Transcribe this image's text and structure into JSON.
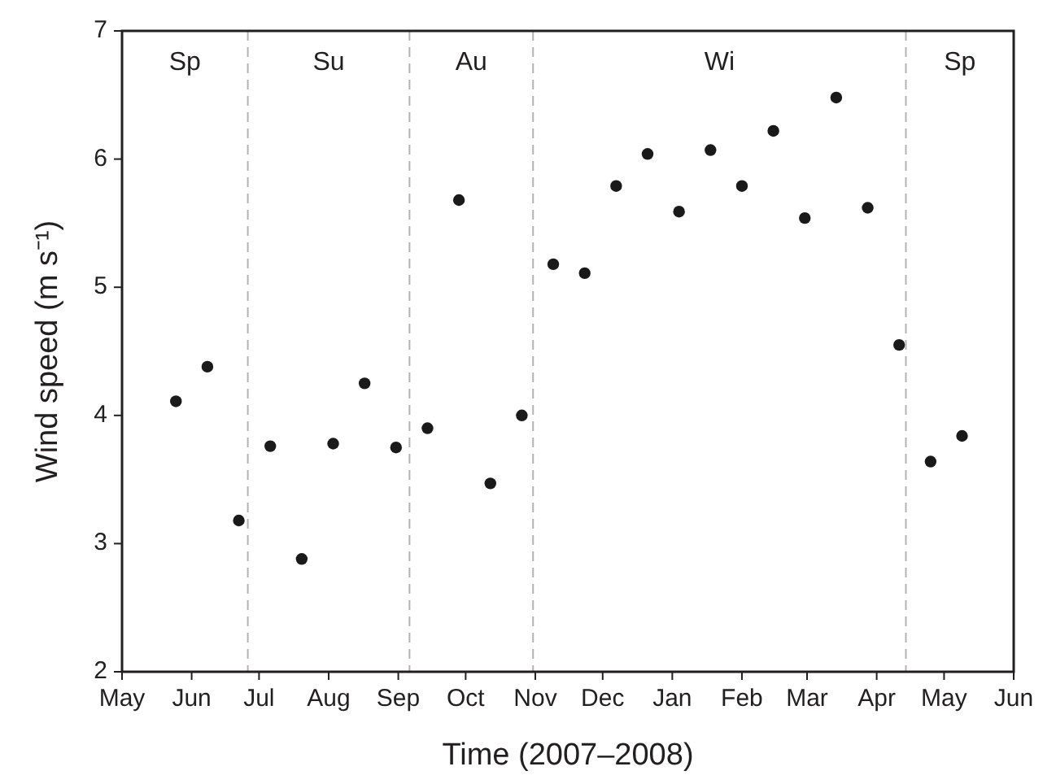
{
  "chart_data": {
    "type": "scatter",
    "xlabel": "Time (2007–2008)",
    "ylabel": "Wind speed  (m s⁻¹)",
    "x": [
      "2007-05-25",
      "2007-06-08",
      "2007-06-22",
      "2007-07-06",
      "2007-07-20",
      "2007-08-03",
      "2007-08-17",
      "2007-08-31",
      "2007-09-14",
      "2007-09-28",
      "2007-10-12",
      "2007-10-26",
      "2007-11-09",
      "2007-11-23",
      "2007-12-07",
      "2007-12-21",
      "2008-01-04",
      "2008-01-18",
      "2008-02-01",
      "2008-02-15",
      "2008-02-29",
      "2008-03-14",
      "2008-03-28",
      "2008-04-11",
      "2008-04-25",
      "2008-05-09"
    ],
    "series": [
      {
        "color": "#1a1a1a",
        "values": [
          4.11,
          4.38,
          3.18,
          3.76,
          2.88,
          3.78,
          4.25,
          3.75,
          3.9,
          5.68,
          3.47,
          4.0,
          5.18,
          5.11,
          5.79,
          6.04,
          5.59,
          6.07,
          5.79,
          6.22,
          5.54,
          6.48,
          5.62,
          4.55,
          3.64,
          3.84
        ]
      }
    ],
    "marker": "circle",
    "grid": false,
    "xlim": [
      "2007-05-01",
      "2008-06-01"
    ],
    "xticks": [
      {
        "value": "2007-05-01",
        "label": "May"
      },
      {
        "value": "2007-06-01",
        "label": "Jun"
      },
      {
        "value": "2007-07-01",
        "label": "Jul"
      },
      {
        "value": "2007-08-01",
        "label": "Aug"
      },
      {
        "value": "2007-09-01",
        "label": "Sep"
      },
      {
        "value": "2007-10-01",
        "label": "Oct"
      },
      {
        "value": "2007-11-01",
        "label": "Nov"
      },
      {
        "value": "2007-12-01",
        "label": "Dec"
      },
      {
        "value": "2008-01-01",
        "label": "Jan"
      },
      {
        "value": "2008-02-01",
        "label": "Feb"
      },
      {
        "value": "2008-03-01",
        "label": "Mar"
      },
      {
        "value": "2008-04-01",
        "label": "Apr"
      },
      {
        "value": "2008-05-01",
        "label": "May"
      },
      {
        "value": "2008-06-01",
        "label": "Jun"
      }
    ],
    "ylim": [
      2,
      7
    ],
    "yticks": [
      2,
      3,
      4,
      5,
      6,
      7
    ],
    "ref_lines": [
      {
        "axis": "x",
        "value": "2007-06-26",
        "color": "#b3b3b3",
        "line_style": "dashed"
      },
      {
        "axis": "x",
        "value": "2007-09-06",
        "color": "#b3b3b3",
        "line_style": "dashed"
      },
      {
        "axis": "x",
        "value": "2007-10-31",
        "color": "#b3b3b3",
        "line_style": "dashed"
      },
      {
        "axis": "x",
        "value": "2008-04-14",
        "color": "#b3b3b3",
        "line_style": "dashed"
      }
    ],
    "annotations": [
      "Sp",
      "Su",
      "Au",
      "Wi",
      "Sp"
    ]
  }
}
